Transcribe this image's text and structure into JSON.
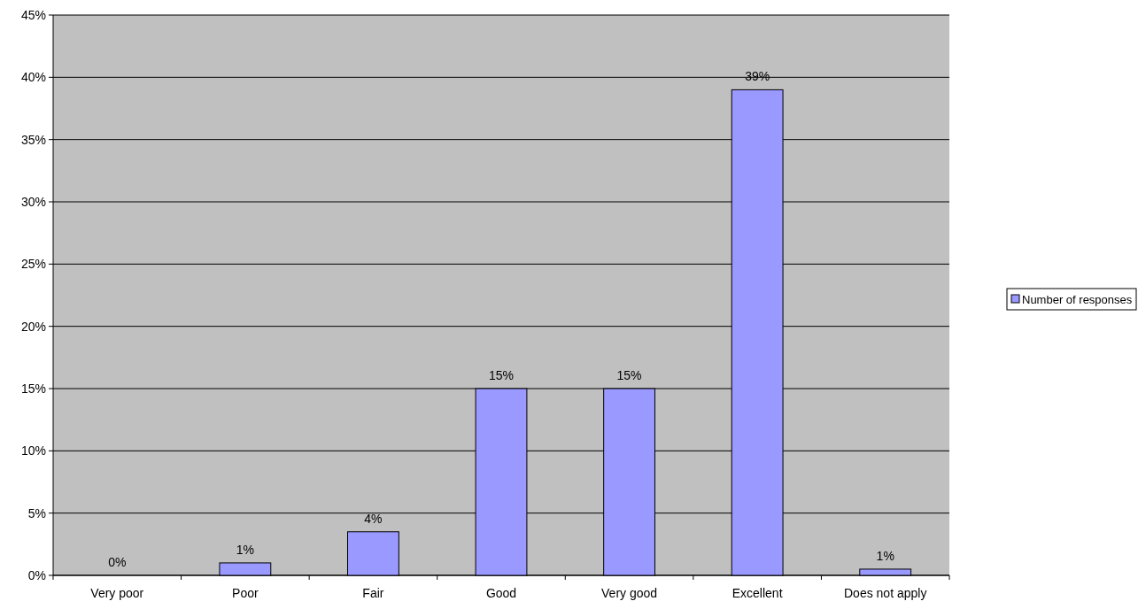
{
  "chart_data": {
    "type": "bar",
    "categories": [
      "Very poor",
      "Poor",
      "Fair",
      "Good",
      "Very good",
      "Excellent",
      "Does not apply"
    ],
    "series": [
      {
        "name": "Number of responses",
        "color": "#9999ff",
        "values": [
          0,
          1,
          3.5,
          15,
          15,
          39,
          0.5
        ],
        "value_labels": [
          "0%",
          "1%",
          "4%",
          "15%",
          "15%",
          "39%",
          "1%"
        ]
      }
    ],
    "ylim": [
      0,
      45
    ],
    "yticks": [
      {
        "value": 0,
        "label": "0%"
      },
      {
        "value": 5,
        "label": "5%"
      },
      {
        "value": 10,
        "label": "10%"
      },
      {
        "value": 15,
        "label": "15%"
      },
      {
        "value": 20,
        "label": "20%"
      },
      {
        "value": 25,
        "label": "25%"
      },
      {
        "value": 30,
        "label": "30%"
      },
      {
        "value": 35,
        "label": "35%"
      },
      {
        "value": 40,
        "label": "40%"
      },
      {
        "value": 45,
        "label": "45%"
      }
    ],
    "grid": "y",
    "legend": "right"
  }
}
